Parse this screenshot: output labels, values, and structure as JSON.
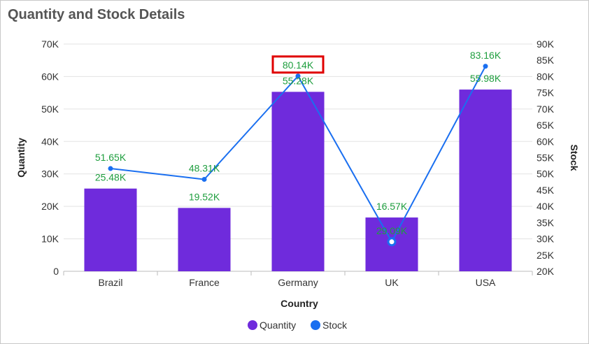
{
  "header": {
    "title": "Quantity and Stock Details"
  },
  "chart_data": {
    "type": "bar",
    "categories": [
      "Brazil",
      "France",
      "Germany",
      "UK",
      "USA"
    ],
    "series": [
      {
        "name": "Quantity",
        "type": "bar",
        "axis": "left",
        "values": [
          25480,
          19520,
          55280,
          16570,
          55980
        ],
        "labels": [
          "25.48K",
          "19.52K",
          "55.28K",
          "16.57K",
          "55.98K"
        ]
      },
      {
        "name": "Stock",
        "type": "line",
        "axis": "right",
        "values": [
          51650,
          48310,
          80140,
          29090,
          83160
        ],
        "labels": [
          "51.65K",
          "48.31K",
          "80.14K",
          "29.09K",
          "83.16K"
        ]
      }
    ],
    "xlabel": "Country",
    "ylabel": "Quantity",
    "y2label": "Stock",
    "ylim": [
      0,
      70000
    ],
    "y2lim": [
      20000,
      90000
    ],
    "yticks": [
      "0",
      "10K",
      "20K",
      "30K",
      "40K",
      "50K",
      "60K",
      "70K"
    ],
    "y2ticks": [
      "20K",
      "25K",
      "30K",
      "35K",
      "40K",
      "45K",
      "50K",
      "55K",
      "60K",
      "65K",
      "70K",
      "75K",
      "80K",
      "85K",
      "90K"
    ],
    "colors": {
      "Quantity": "#6f2bdc",
      "Stock": "#1a6ff0",
      "labels": "#1e9e3e",
      "highlight": "#e00000"
    },
    "highlighted_label": "80.14K",
    "selected_point": "UK",
    "grid": true,
    "legend": "bottom-center"
  }
}
